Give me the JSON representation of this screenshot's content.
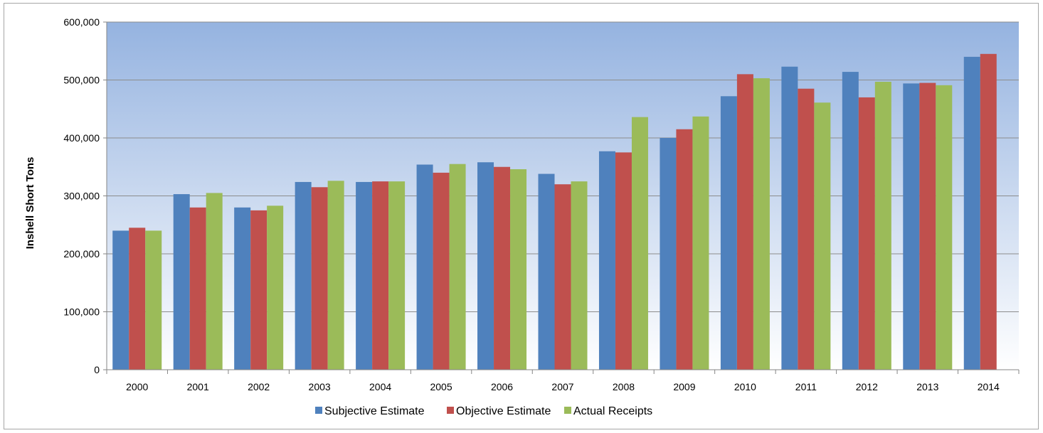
{
  "chart_data": {
    "type": "bar",
    "title": "",
    "xlabel": "",
    "ylabel": "Inshell Short Tons",
    "ylim": [
      0,
      600000
    ],
    "yticks": [
      0,
      100000,
      200000,
      300000,
      400000,
      500000,
      600000
    ],
    "ytick_labels": [
      "0",
      "100,000",
      "200,000",
      "300,000",
      "400,000",
      "500,000",
      "600,000"
    ],
    "grid": true,
    "legend_position": "bottom",
    "categories": [
      "2000",
      "2001",
      "2002",
      "2003",
      "2004",
      "2005",
      "2006",
      "2007",
      "2008",
      "2009",
      "2010",
      "2011",
      "2012",
      "2013",
      "2014"
    ],
    "series": [
      {
        "name": "Subjective Estimate",
        "color": "#4f81bd",
        "values": [
          240000,
          303000,
          280000,
          324000,
          324000,
          354000,
          358000,
          338000,
          377000,
          400000,
          472000,
          523000,
          514000,
          494000,
          540000
        ]
      },
      {
        "name": "Objective Estimate",
        "color": "#c0504d",
        "values": [
          245000,
          280000,
          275000,
          315000,
          325000,
          340000,
          350000,
          320000,
          375000,
          415000,
          510000,
          485000,
          470000,
          495000,
          545000
        ]
      },
      {
        "name": "Actual Receipts",
        "color": "#9bbb59",
        "values": [
          240000,
          305000,
          283000,
          326000,
          325000,
          355000,
          346000,
          325000,
          436000,
          437000,
          503000,
          461000,
          497000,
          491000,
          null
        ]
      }
    ],
    "plot_background": [
      "#95b3e0",
      "#ffffff"
    ]
  }
}
